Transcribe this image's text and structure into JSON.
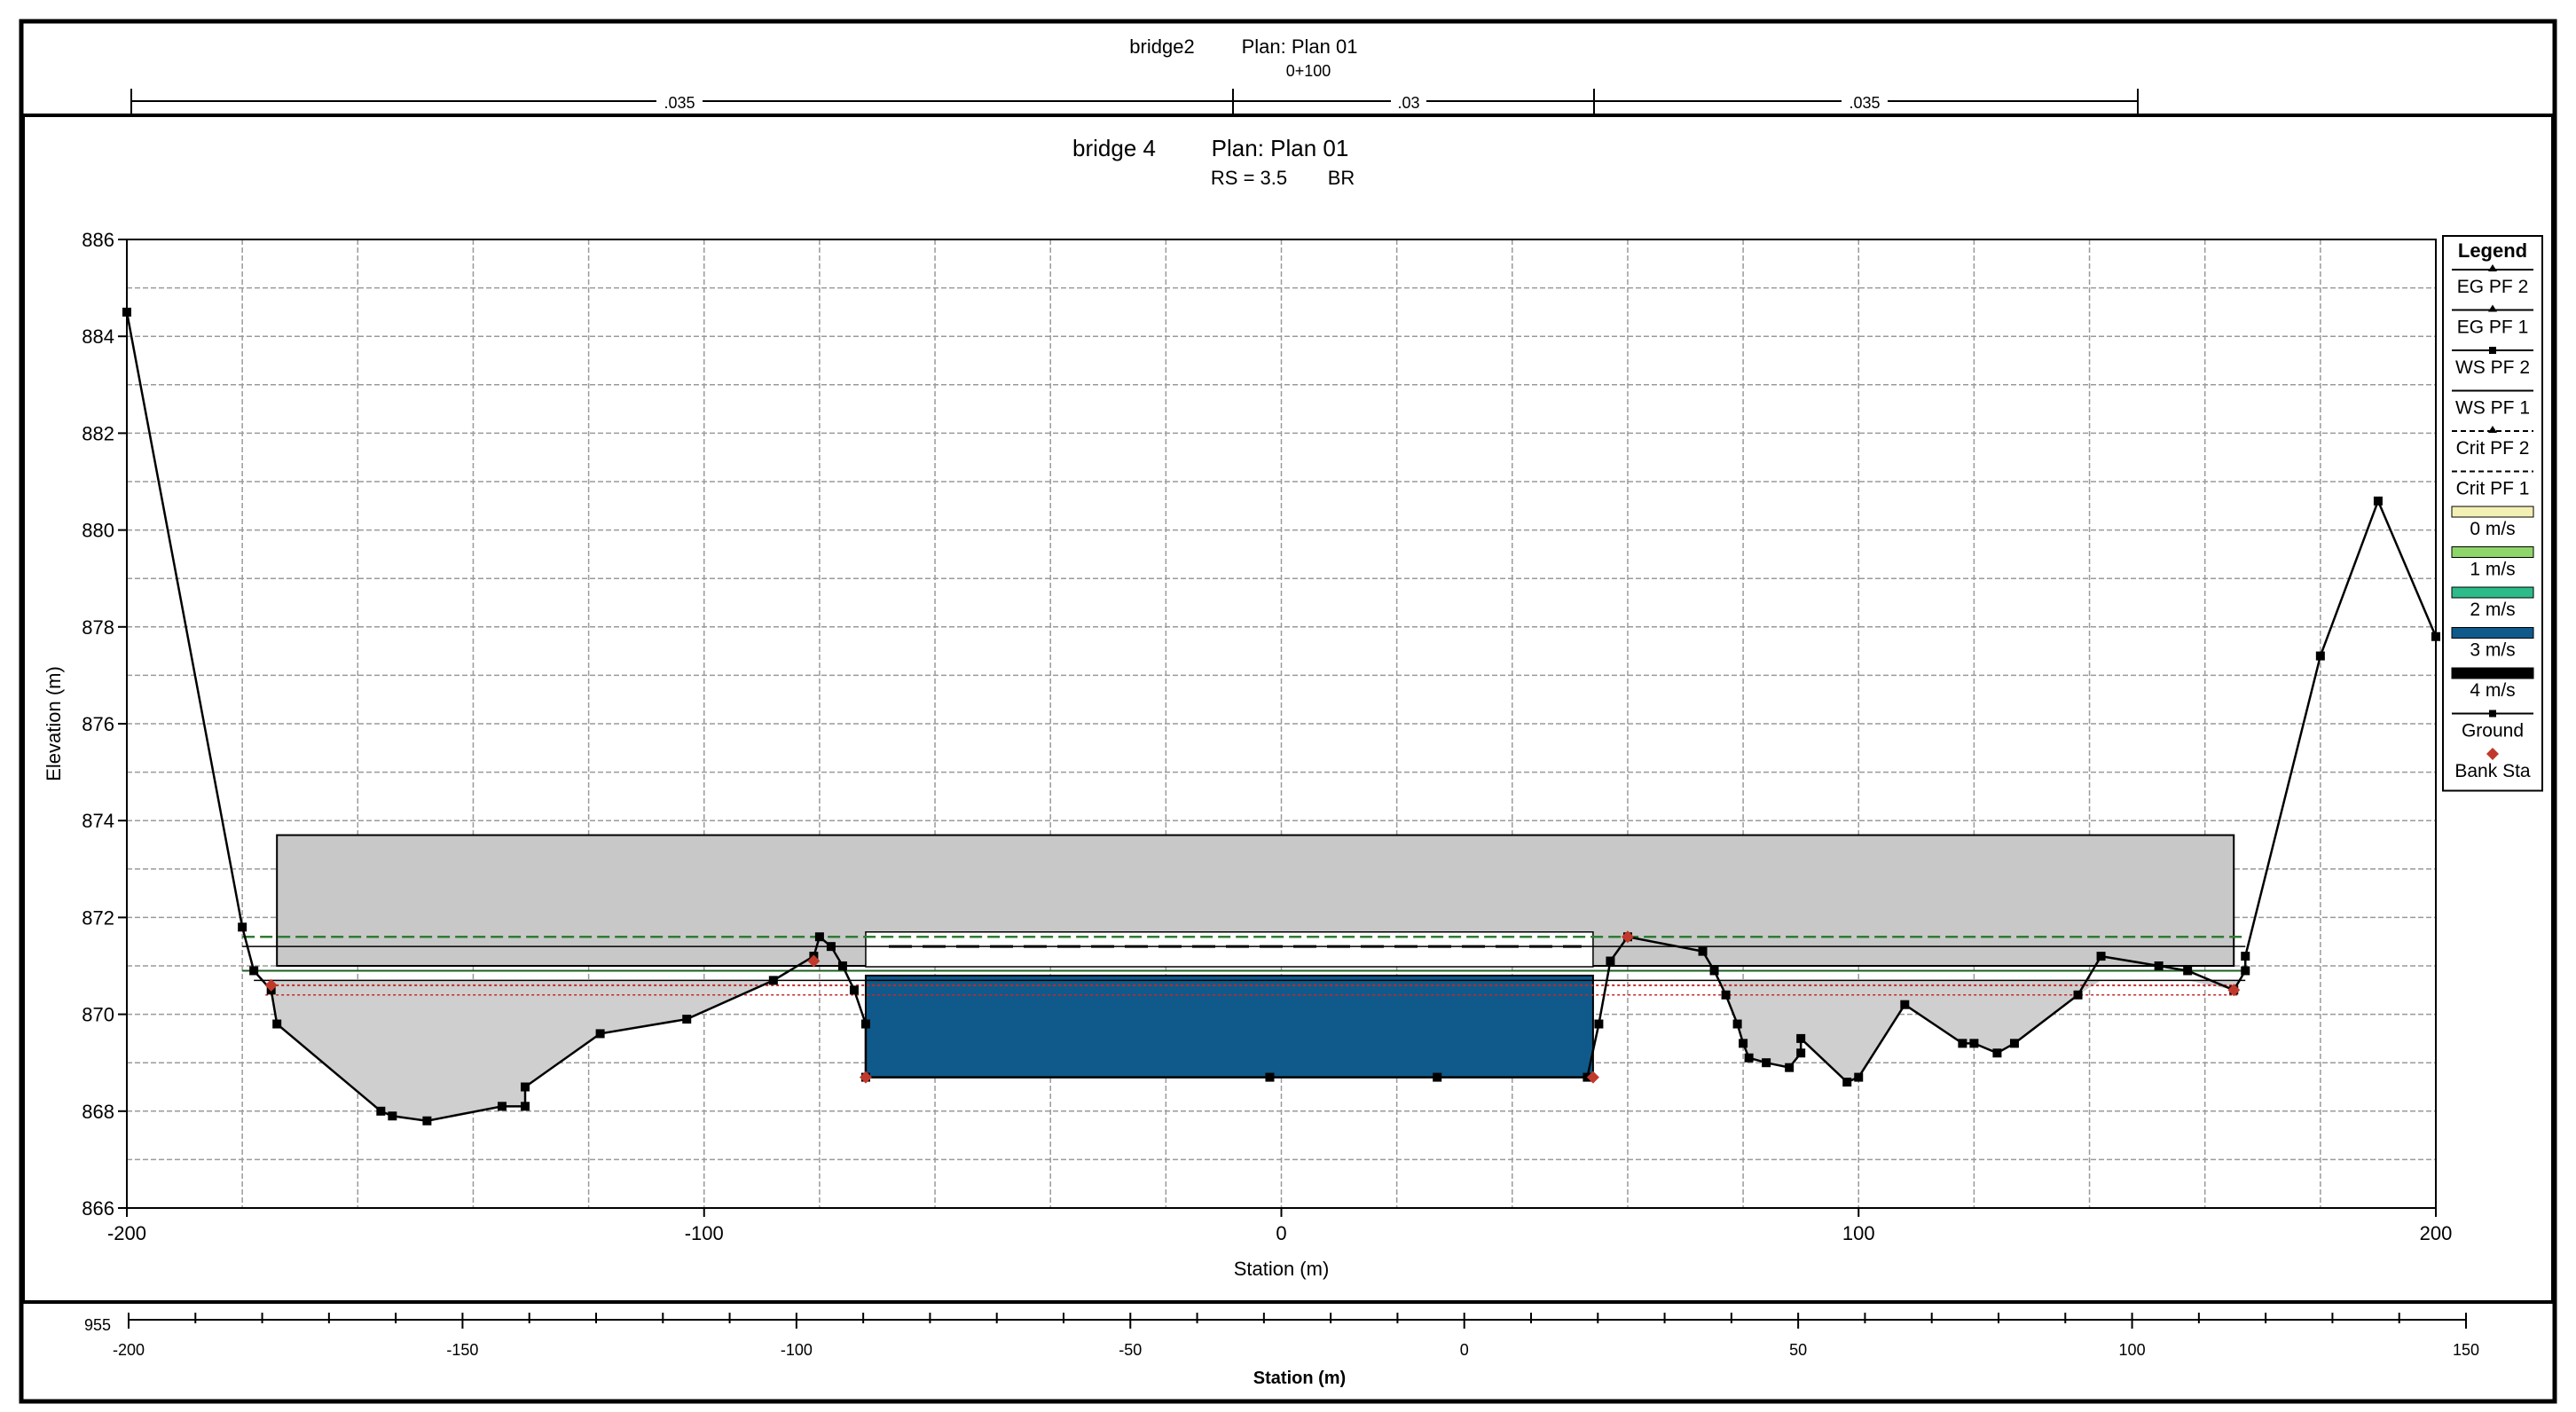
{
  "back_window": {
    "title": "bridge2",
    "plan": "Plan: Plan 01",
    "river_station": "0+100",
    "mannings_n": [
      ".035",
      ".03",
      ".035"
    ],
    "chart_data": {
      "type": "line",
      "xlabel": "Station (m)",
      "xlim": [
        -200,
        150
      ],
      "x_ticks": [
        -200,
        -150,
        -100,
        -50,
        0,
        50,
        100,
        150
      ],
      "y_tick_visible": "955"
    }
  },
  "main_window": {
    "title": "bridge 4",
    "plan": "Plan: Plan 01",
    "subtitle_rs": "RS = 3.5",
    "subtitle_type": "BR"
  },
  "colors": {
    "ground": "#000000",
    "bank_sta": "#c0392b",
    "ineffective_fill": "#cfcfcf",
    "deck_fill": "#c8c8c8",
    "v0": "#f3f0b4",
    "v1": "#8fd66a",
    "v2": "#2dbb8a",
    "v3": "#0f5a8a",
    "v4": "#000000"
  },
  "chart_data": {
    "type": "line",
    "xlabel": "Station (m)",
    "ylabel": "Elevation (m)",
    "xlim": [
      -200,
      200
    ],
    "ylim": [
      866,
      886
    ],
    "x_ticks": [
      -200,
      -100,
      0,
      100,
      200
    ],
    "y_ticks": [
      866,
      868,
      870,
      872,
      874,
      876,
      878,
      880,
      882,
      884,
      886
    ],
    "grid": true,
    "legend_title": "Legend",
    "legend_position": "right",
    "legend": [
      {
        "label": "EG PF 2",
        "style": "line-triangle"
      },
      {
        "label": "EG PF 1",
        "style": "line-triangle"
      },
      {
        "label": "WS PF 2",
        "style": "line-square"
      },
      {
        "label": "WS PF 1",
        "style": "line"
      },
      {
        "label": "Crit PF 2",
        "style": "dashed-triangle"
      },
      {
        "label": "Crit PF 1",
        "style": "dashed"
      },
      {
        "label": "0 m/s",
        "style": "box",
        "color": "#f3f0b4"
      },
      {
        "label": "1 m/s",
        "style": "box",
        "color": "#8fd66a"
      },
      {
        "label": "2 m/s",
        "style": "box",
        "color": "#2dbb8a"
      },
      {
        "label": "3 m/s",
        "style": "box",
        "color": "#0f5a8a"
      },
      {
        "label": "4 m/s",
        "style": "box",
        "color": "#000000"
      },
      {
        "label": "Ground",
        "style": "line-square"
      },
      {
        "label": "Bank Sta",
        "style": "diamond"
      }
    ],
    "ground": [
      [
        -200,
        884.5
      ],
      [
        -180,
        871.8
      ],
      [
        -178,
        870.9
      ],
      [
        -175,
        870.5
      ],
      [
        -174,
        869.8
      ],
      [
        -156,
        868.0
      ],
      [
        -154,
        867.9
      ],
      [
        -148,
        867.8
      ],
      [
        -135,
        868.1
      ],
      [
        -131,
        868.1
      ],
      [
        -131,
        868.5
      ],
      [
        -118,
        869.6
      ],
      [
        -103,
        869.9
      ],
      [
        -88,
        870.7
      ],
      [
        -81,
        871.2
      ],
      [
        -80,
        871.6
      ],
      [
        -78,
        871.4
      ],
      [
        -76,
        871.0
      ],
      [
        -74,
        870.5
      ],
      [
        -72,
        869.8
      ],
      [
        -72,
        868.7
      ],
      [
        -2,
        868.7
      ],
      [
        27,
        868.7
      ],
      [
        53,
        868.7
      ],
      [
        55,
        869.8
      ],
      [
        57,
        871.1
      ],
      [
        60,
        871.6
      ],
      [
        73,
        871.3
      ],
      [
        75,
        870.9
      ],
      [
        77,
        870.4
      ],
      [
        79,
        869.8
      ],
      [
        80,
        869.4
      ],
      [
        81,
        869.1
      ],
      [
        84,
        869.0
      ],
      [
        88,
        868.9
      ],
      [
        90,
        869.2
      ],
      [
        90,
        869.5
      ],
      [
        98,
        868.6
      ],
      [
        100,
        868.7
      ],
      [
        108,
        870.2
      ],
      [
        118,
        869.4
      ],
      [
        120,
        869.4
      ],
      [
        124,
        869.2
      ],
      [
        127,
        869.4
      ],
      [
        138,
        870.4
      ],
      [
        142,
        871.2
      ],
      [
        152,
        871.0
      ],
      [
        157,
        870.9
      ],
      [
        165,
        870.5
      ],
      [
        167,
        870.9
      ],
      [
        167,
        871.2
      ],
      [
        180,
        877.4
      ],
      [
        190,
        880.6
      ],
      [
        200,
        877.8
      ]
    ],
    "bank_stations": [
      [
        -175,
        870.6
      ],
      [
        -81,
        871.1
      ],
      [
        -72,
        868.7
      ],
      [
        54,
        868.7
      ],
      [
        60,
        871.6
      ],
      [
        165,
        870.5
      ]
    ],
    "bridge_deck": {
      "high_chord": 873.7,
      "low_chord": 871.0,
      "from": -174,
      "to": 165
    },
    "bridge_opening": {
      "from": -72,
      "to": 54,
      "top": 871.7
    },
    "ws_pf1": 870.7,
    "ws_pf2": 870.9,
    "eg_pf1": 871.4,
    "eg_pf2": 871.6,
    "crit_pf1": 870.4,
    "crit_pf2": 870.6,
    "channel_flow": {
      "from": -72,
      "to": 54,
      "bottom": 868.7,
      "top": 870.8,
      "velocity_class": "3 m/s"
    }
  }
}
